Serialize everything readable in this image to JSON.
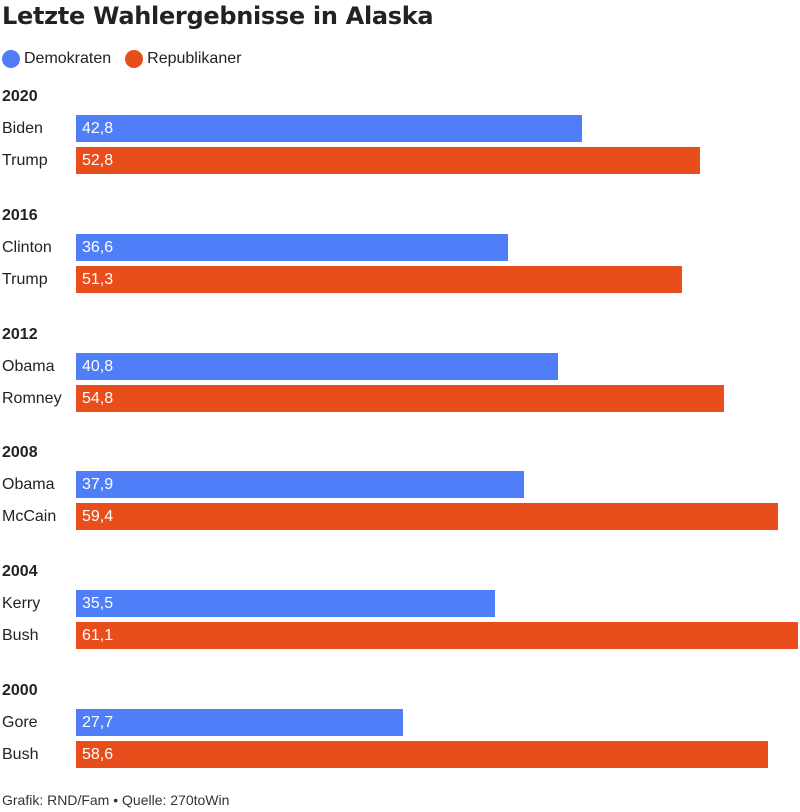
{
  "header": {
    "title": "Letzte Wahlergebnisse in Alaska"
  },
  "legend": [
    {
      "label": "Demokraten",
      "color": "#4f7ef8"
    },
    {
      "label": "Republikaner",
      "color": "#e84e1b"
    }
  ],
  "chart_data": {
    "type": "bar",
    "orientation": "horizontal",
    "title": "Letzte Wahlergebnisse in Alaska",
    "xlim": [
      0,
      61.1
    ],
    "grid": false,
    "legend_position": "top-left",
    "series": [
      {
        "name": "Demokraten",
        "color": "#4f7ef8"
      },
      {
        "name": "Republikaner",
        "color": "#e84e1b"
      }
    ],
    "groups": [
      {
        "year": "2020",
        "rows": [
          {
            "candidate": "Biden",
            "value": 42.8,
            "label": "42,8",
            "series": "Demokraten"
          },
          {
            "candidate": "Trump",
            "value": 52.8,
            "label": "52,8",
            "series": "Republikaner"
          }
        ]
      },
      {
        "year": "2016",
        "rows": [
          {
            "candidate": "Clinton",
            "value": 36.6,
            "label": "36,6",
            "series": "Demokraten"
          },
          {
            "candidate": "Trump",
            "value": 51.3,
            "label": "51,3",
            "series": "Republikaner"
          }
        ]
      },
      {
        "year": "2012",
        "rows": [
          {
            "candidate": "Obama",
            "value": 40.8,
            "label": "40,8",
            "series": "Demokraten"
          },
          {
            "candidate": "Romney",
            "value": 54.8,
            "label": "54,8",
            "series": "Republikaner"
          }
        ]
      },
      {
        "year": "2008",
        "rows": [
          {
            "candidate": "Obama",
            "value": 37.9,
            "label": "37,9",
            "series": "Demokraten"
          },
          {
            "candidate": "McCain",
            "value": 59.4,
            "label": "59,4",
            "series": "Republikaner"
          }
        ]
      },
      {
        "year": "2004",
        "rows": [
          {
            "candidate": "Kerry",
            "value": 35.5,
            "label": "35,5",
            "series": "Demokraten"
          },
          {
            "candidate": "Bush",
            "value": 61.1,
            "label": "61,1",
            "series": "Republikaner"
          }
        ]
      },
      {
        "year": "2000",
        "rows": [
          {
            "candidate": "Gore",
            "value": 27.7,
            "label": "27,7",
            "series": "Demokraten"
          },
          {
            "candidate": "Bush",
            "value": 58.6,
            "label": "58,6",
            "series": "Republikaner"
          }
        ]
      }
    ]
  },
  "footer": {
    "source": "Grafik: RND/Fam • Quelle: 270toWin"
  }
}
